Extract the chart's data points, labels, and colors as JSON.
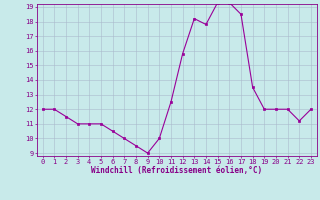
{
  "x": [
    0,
    1,
    2,
    3,
    4,
    5,
    6,
    7,
    8,
    9,
    10,
    11,
    12,
    13,
    14,
    15,
    16,
    17,
    18,
    19,
    20,
    21,
    22,
    23
  ],
  "y": [
    12,
    12,
    11.5,
    11,
    11,
    11,
    10.5,
    10,
    9.5,
    9,
    10,
    12.5,
    15.8,
    18.2,
    17.8,
    19.3,
    19.3,
    18.5,
    13.5,
    12,
    12,
    12,
    11.2,
    12
  ],
  "line_color": "#990099",
  "marker_color": "#990099",
  "bg_color": "#c8eaea",
  "grid_color": "#aabbcc",
  "xlabel": "Windchill (Refroidissement éolien,°C)",
  "xlabel_color": "#880088",
  "tick_color": "#880088",
  "ylim": [
    9,
    19
  ],
  "xlim": [
    -0.5,
    23.5
  ],
  "yticks": [
    9,
    10,
    11,
    12,
    13,
    14,
    15,
    16,
    17,
    18,
    19
  ],
  "xticks": [
    0,
    1,
    2,
    3,
    4,
    5,
    6,
    7,
    8,
    9,
    10,
    11,
    12,
    13,
    14,
    15,
    16,
    17,
    18,
    19,
    20,
    21,
    22,
    23
  ],
  "tick_fontsize": 5.0,
  "xlabel_fontsize": 5.5
}
